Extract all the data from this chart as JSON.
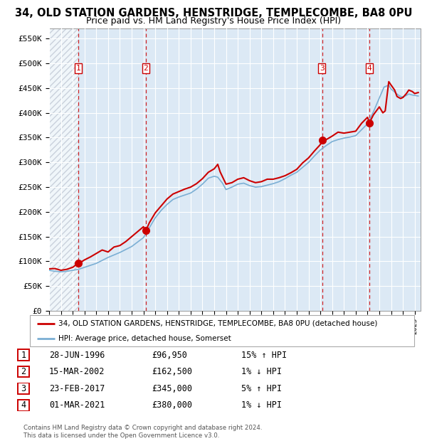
{
  "title": "34, OLD STATION GARDENS, HENSTRIDGE, TEMPLECOMBE, BA8 0PU",
  "subtitle": "Price paid vs. HM Land Registry's House Price Index (HPI)",
  "ylim": [
    0,
    570000
  ],
  "yticks": [
    0,
    50000,
    100000,
    150000,
    200000,
    250000,
    300000,
    350000,
    400000,
    450000,
    500000,
    550000
  ],
  "ytick_labels": [
    "£0",
    "£50K",
    "£100K",
    "£150K",
    "£200K",
    "£250K",
    "£300K",
    "£350K",
    "£400K",
    "£450K",
    "£500K",
    "£550K"
  ],
  "xlim_start": 1994.0,
  "xlim_end": 2025.5,
  "xtick_years": [
    1994,
    1995,
    1996,
    1997,
    1998,
    1999,
    2000,
    2001,
    2002,
    2003,
    2004,
    2005,
    2006,
    2007,
    2008,
    2009,
    2010,
    2011,
    2012,
    2013,
    2014,
    2015,
    2016,
    2017,
    2018,
    2019,
    2020,
    2021,
    2022,
    2023,
    2024,
    2025
  ],
  "plot_bg_color": "#dce9f5",
  "hpi_color": "#7bafd4",
  "price_color": "#cc0000",
  "dashed_vline_color": "#cc0000",
  "grid_color": "#ffffff",
  "hatch_color": "#b0b8c8",
  "sales": [
    {
      "label": "1",
      "date_float": 1996.49,
      "price": 96950
    },
    {
      "label": "2",
      "date_float": 2002.21,
      "price": 162500
    },
    {
      "label": "3",
      "date_float": 2017.15,
      "price": 345000
    },
    {
      "label": "4",
      "date_float": 2021.16,
      "price": 380000
    }
  ],
  "legend_price_label": "34, OLD STATION GARDENS, HENSTRIDGE, TEMPLECOMBE, BA8 0PU (detached house)",
  "legend_hpi_label": "HPI: Average price, detached house, Somerset",
  "table_rows": [
    {
      "num": "1",
      "date": "28-JUN-1996",
      "price": "£96,950",
      "hpi": "15% ↑ HPI"
    },
    {
      "num": "2",
      "date": "15-MAR-2002",
      "price": "£162,500",
      "hpi": "1% ↓ HPI"
    },
    {
      "num": "3",
      "date": "23-FEB-2017",
      "price": "£345,000",
      "hpi": "5% ↑ HPI"
    },
    {
      "num": "4",
      "date": "01-MAR-2021",
      "price": "£380,000",
      "hpi": "1% ↓ HPI"
    }
  ],
  "footnote": "Contains HM Land Registry data © Crown copyright and database right 2024.\nThis data is licensed under the Open Government Licence v3.0.",
  "hpi_series": [
    [
      1994.0,
      82000
    ],
    [
      1994.5,
      80000
    ],
    [
      1995.0,
      79000
    ],
    [
      1995.5,
      80000
    ],
    [
      1996.0,
      82000
    ],
    [
      1996.5,
      84000
    ],
    [
      1997.0,
      88000
    ],
    [
      1997.5,
      92000
    ],
    [
      1998.0,
      96000
    ],
    [
      1998.5,
      102000
    ],
    [
      1999.0,
      108000
    ],
    [
      1999.5,
      113000
    ],
    [
      2000.0,
      118000
    ],
    [
      2000.5,
      124000
    ],
    [
      2001.0,
      130000
    ],
    [
      2001.5,
      139000
    ],
    [
      2002.0,
      148000
    ],
    [
      2002.5,
      168000
    ],
    [
      2003.0,
      188000
    ],
    [
      2003.5,
      203000
    ],
    [
      2004.0,
      215000
    ],
    [
      2004.5,
      225000
    ],
    [
      2005.0,
      230000
    ],
    [
      2005.5,
      234000
    ],
    [
      2006.0,
      238000
    ],
    [
      2006.5,
      246000
    ],
    [
      2007.0,
      256000
    ],
    [
      2007.5,
      268000
    ],
    [
      2008.0,
      272000
    ],
    [
      2008.3,
      270000
    ],
    [
      2008.7,
      258000
    ],
    [
      2009.0,
      245000
    ],
    [
      2009.5,
      250000
    ],
    [
      2010.0,
      256000
    ],
    [
      2010.5,
      258000
    ],
    [
      2011.0,
      253000
    ],
    [
      2011.5,
      250000
    ],
    [
      2012.0,
      251000
    ],
    [
      2012.5,
      254000
    ],
    [
      2013.0,
      257000
    ],
    [
      2013.5,
      261000
    ],
    [
      2014.0,
      267000
    ],
    [
      2014.5,
      274000
    ],
    [
      2015.0,
      280000
    ],
    [
      2015.5,
      290000
    ],
    [
      2016.0,
      300000
    ],
    [
      2016.5,
      313000
    ],
    [
      2017.0,
      325000
    ],
    [
      2017.5,
      334000
    ],
    [
      2018.0,
      342000
    ],
    [
      2018.5,
      346000
    ],
    [
      2019.0,
      349000
    ],
    [
      2019.5,
      351000
    ],
    [
      2020.0,
      354000
    ],
    [
      2020.5,
      366000
    ],
    [
      2021.0,
      378000
    ],
    [
      2021.5,
      402000
    ],
    [
      2022.0,
      430000
    ],
    [
      2022.4,
      452000
    ],
    [
      2022.8,
      456000
    ],
    [
      2023.0,
      448000
    ],
    [
      2023.3,
      442000
    ],
    [
      2023.6,
      436000
    ],
    [
      2023.9,
      432000
    ],
    [
      2024.2,
      434000
    ],
    [
      2024.5,
      438000
    ],
    [
      2024.8,
      436000
    ],
    [
      2025.3,
      434000
    ]
  ],
  "price_series": [
    [
      1994.0,
      85000
    ],
    [
      1994.5,
      85500
    ],
    [
      1995.0,
      82000
    ],
    [
      1995.5,
      84000
    ],
    [
      1996.0,
      88000
    ],
    [
      1996.49,
      96950
    ],
    [
      1996.8,
      100000
    ],
    [
      1997.0,
      103000
    ],
    [
      1997.5,
      109000
    ],
    [
      1998.0,
      116000
    ],
    [
      1998.5,
      123000
    ],
    [
      1999.0,
      119000
    ],
    [
      1999.5,
      129000
    ],
    [
      2000.0,
      132000
    ],
    [
      2000.5,
      140000
    ],
    [
      2001.0,
      150000
    ],
    [
      2001.5,
      160000
    ],
    [
      2002.0,
      170000
    ],
    [
      2002.21,
      162500
    ],
    [
      2002.5,
      178000
    ],
    [
      2003.0,
      198000
    ],
    [
      2003.5,
      212000
    ],
    [
      2004.0,
      226000
    ],
    [
      2004.5,
      236000
    ],
    [
      2005.0,
      241000
    ],
    [
      2005.5,
      246000
    ],
    [
      2006.0,
      250000
    ],
    [
      2006.5,
      257000
    ],
    [
      2007.0,
      267000
    ],
    [
      2007.5,
      280000
    ],
    [
      2008.0,
      287000
    ],
    [
      2008.3,
      296000
    ],
    [
      2008.5,
      281000
    ],
    [
      2009.0,
      256000
    ],
    [
      2009.5,
      259000
    ],
    [
      2010.0,
      266000
    ],
    [
      2010.5,
      269000
    ],
    [
      2011.0,
      263000
    ],
    [
      2011.5,
      259000
    ],
    [
      2012.0,
      261000
    ],
    [
      2012.5,
      266000
    ],
    [
      2013.0,
      266000
    ],
    [
      2013.5,
      269000
    ],
    [
      2014.0,
      273000
    ],
    [
      2014.5,
      279000
    ],
    [
      2015.0,
      286000
    ],
    [
      2015.5,
      299000
    ],
    [
      2016.0,
      309000
    ],
    [
      2016.5,
      323000
    ],
    [
      2017.0,
      336000
    ],
    [
      2017.15,
      345000
    ],
    [
      2017.5,
      346000
    ],
    [
      2018.0,
      353000
    ],
    [
      2018.5,
      361000
    ],
    [
      2019.0,
      359000
    ],
    [
      2019.5,
      361000
    ],
    [
      2020.0,
      363000
    ],
    [
      2020.5,
      379000
    ],
    [
      2021.0,
      391000
    ],
    [
      2021.16,
      380000
    ],
    [
      2021.5,
      396000
    ],
    [
      2022.0,
      412000
    ],
    [
      2022.3,
      400000
    ],
    [
      2022.5,
      404000
    ],
    [
      2022.8,
      463000
    ],
    [
      2023.0,
      456000
    ],
    [
      2023.3,
      446000
    ],
    [
      2023.5,
      433000
    ],
    [
      2023.8,
      429000
    ],
    [
      2024.0,
      431000
    ],
    [
      2024.3,
      439000
    ],
    [
      2024.5,
      446000
    ],
    [
      2024.8,
      443000
    ],
    [
      2025.0,
      439000
    ],
    [
      2025.3,
      441000
    ]
  ]
}
